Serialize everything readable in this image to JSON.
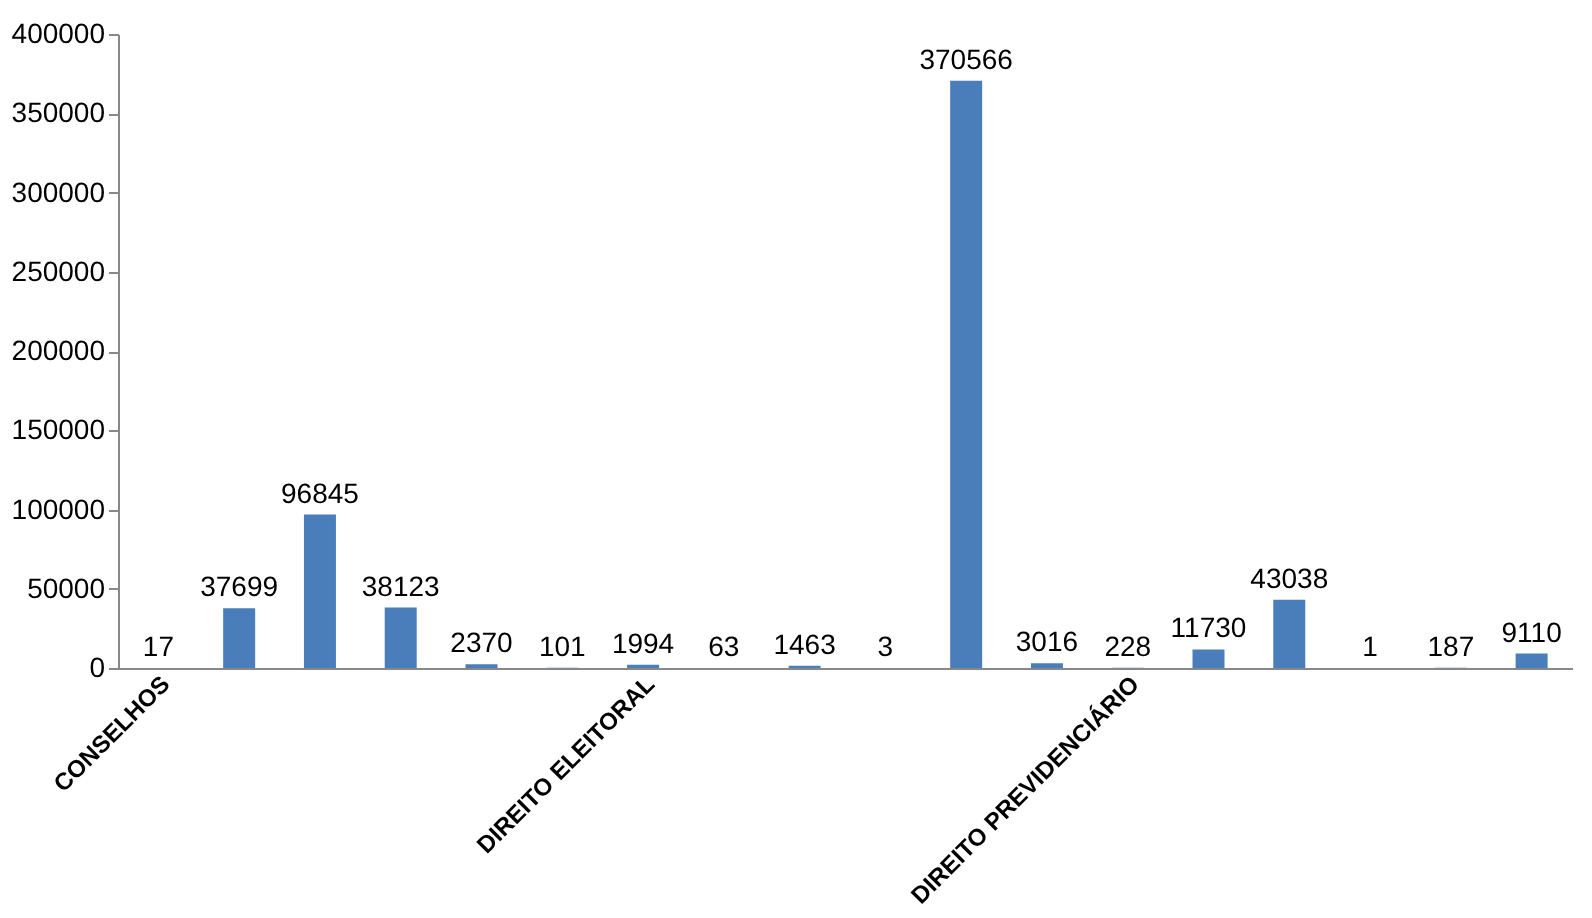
{
  "chart_data": {
    "type": "bar",
    "categories": [
      "CONSELHOS",
      null,
      null,
      null,
      null,
      null,
      "DIREITO ELEITORAL",
      null,
      null,
      null,
      null,
      null,
      "DIREITO PREVIDENCIÁRIO",
      null,
      null,
      null,
      null,
      null
    ],
    "values": [
      17,
      37699,
      96845,
      38123,
      2370,
      101,
      1994,
      63,
      1463,
      3,
      370566,
      3016,
      228,
      11730,
      43038,
      1,
      187,
      9110
    ],
    "color": "#4a7ebb",
    "ylim": [
      0,
      400000
    ],
    "yticks": [
      0,
      50000,
      100000,
      150000,
      200000,
      250000,
      300000,
      350000,
      400000
    ],
    "grid": false,
    "data_labels": true
  }
}
